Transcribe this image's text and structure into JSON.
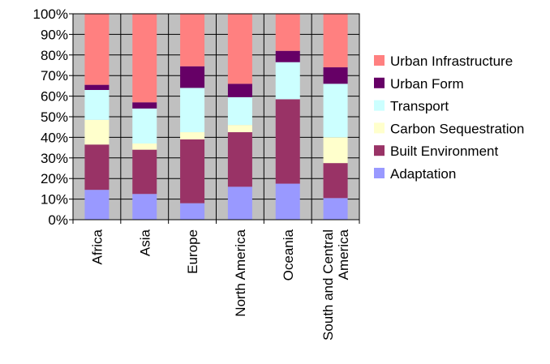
{
  "chart_data": {
    "type": "bar",
    "stacked": "percent",
    "categories": [
      [
        "Africa"
      ],
      [
        "Asia"
      ],
      [
        "Europe"
      ],
      [
        "North America"
      ],
      [
        "Oceania"
      ],
      [
        "South and Central",
        "America"
      ]
    ],
    "series": [
      {
        "name": "Adaptation",
        "color": "#9999ff",
        "values": [
          14.5,
          12.5,
          8,
          16,
          17.5,
          10.5
        ]
      },
      {
        "name": "Built Environment",
        "color": "#993366",
        "values": [
          22,
          21.5,
          31,
          26.5,
          41,
          17
        ]
      },
      {
        "name": "Carbon Sequestration",
        "color": "#ffffcc",
        "values": [
          12,
          3,
          3.5,
          3.5,
          0,
          12.5
        ]
      },
      {
        "name": "Transport",
        "color": "#ccffff",
        "values": [
          14.5,
          17,
          21.5,
          13.5,
          18,
          26
        ]
      },
      {
        "name": "Urban Form",
        "color": "#660066",
        "values": [
          2.5,
          3,
          10.5,
          6.5,
          5.5,
          8
        ]
      },
      {
        "name": "Urban Infrastructure",
        "color": "#ff8080",
        "values": [
          34.5,
          43,
          25.5,
          34,
          18,
          26
        ]
      }
    ],
    "yticks": [
      "0%",
      "10%",
      "20%",
      "30%",
      "40%",
      "50%",
      "60%",
      "70%",
      "80%",
      "90%",
      "100%"
    ],
    "ylim": [
      0,
      100
    ],
    "grid": true,
    "plot_background": "#c0c0c0",
    "legend_position": "right"
  }
}
